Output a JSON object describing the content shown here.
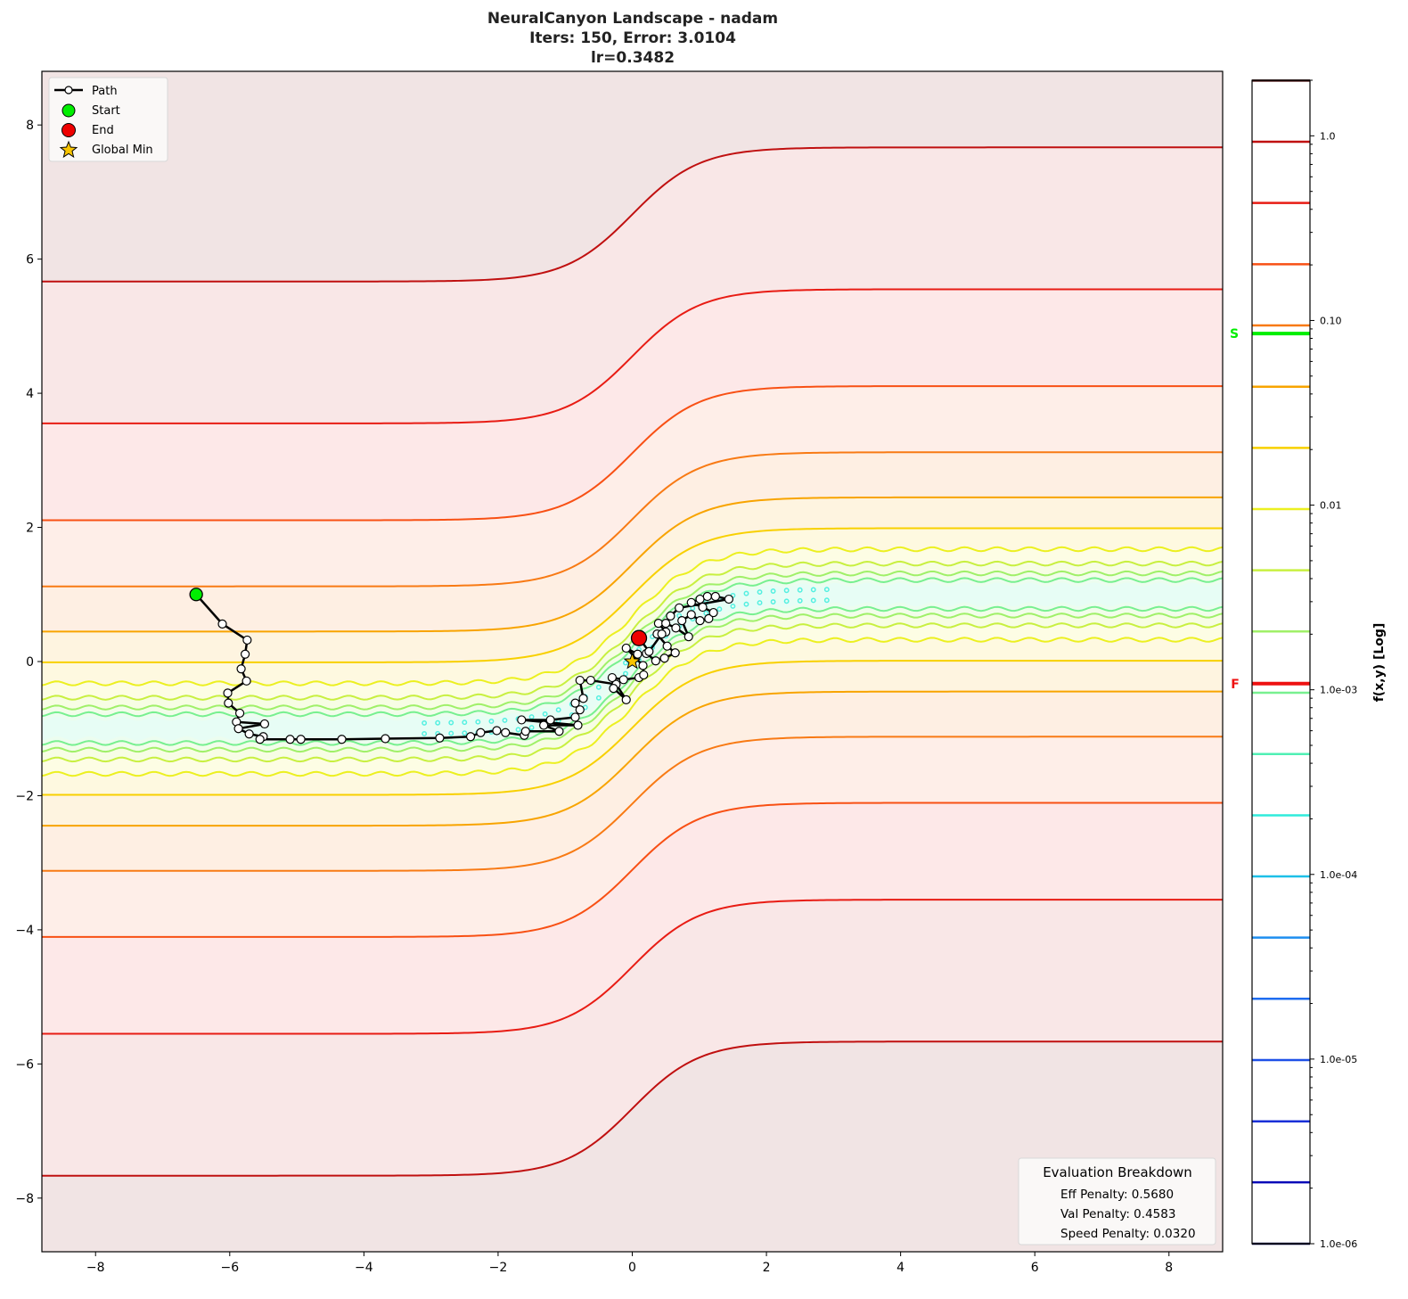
{
  "chart_data": {
    "type": "contour",
    "title": [
      "NeuralCanyon Landscape - nadam",
      "Iters: 150, Error: 3.0104",
      "lr=0.3482"
    ],
    "xlim": [
      -8.8,
      8.8
    ],
    "ylim": [
      -8.8,
      8.8
    ],
    "xticks": [
      -8,
      -6,
      -4,
      -2,
      0,
      2,
      4,
      6,
      8
    ],
    "yticks": [
      -8,
      -6,
      -4,
      -2,
      0,
      2,
      4,
      6,
      8
    ],
    "xtick_labels": [
      "−8",
      "−6",
      "−4",
      "−2",
      "0",
      "2",
      "4",
      "6",
      "8"
    ],
    "ytick_labels": [
      "−8",
      "−6",
      "−4",
      "−2",
      "0",
      "2",
      "4",
      "6",
      "8"
    ],
    "grid": false,
    "contour_levels": [
      1e-06,
      2.15e-06,
      4.6e-06,
      9.88e-06,
      2.12e-05,
      4.55e-05,
      9.76e-05,
      0.000209,
      0.000449,
      0.000964,
      0.00207,
      0.00444,
      0.00952,
      0.0204,
      0.0438,
      0.094,
      0.2017,
      0.4328,
      0.9287,
      1.993
    ],
    "level_colors": [
      "#10104a",
      "#0a0ab8",
      "#1a30d8",
      "#1e50e8",
      "#1e6cf0",
      "#1e8ef0",
      "#1ec0e8",
      "#30ecdc",
      "#50f0b4",
      "#78f090",
      "#a0f068",
      "#c8f040",
      "#ecf020",
      "#f8d000",
      "#f8a400",
      "#f87a14",
      "#f85014",
      "#e81c14",
      "#c01010",
      "#400808"
    ],
    "surface": "f(x,y) = k·(y − tanh(x))², canyon along y = tanh(x)",
    "path": [
      [
        -6.5,
        1.0
      ],
      [
        -6.11,
        0.56
      ],
      [
        -5.74,
        0.32
      ],
      [
        -5.77,
        0.11
      ],
      [
        -5.83,
        -0.11
      ],
      [
        -5.75,
        -0.29
      ],
      [
        -6.03,
        -0.47
      ],
      [
        -6.02,
        -0.62
      ],
      [
        -5.85,
        -0.77
      ],
      [
        -5.9,
        -0.9
      ],
      [
        -5.48,
        -0.93
      ],
      [
        -5.87,
        -1.0
      ],
      [
        -5.71,
        -1.08
      ],
      [
        -5.5,
        -1.12
      ],
      [
        -5.55,
        -1.16
      ],
      [
        -5.1,
        -1.16
      ],
      [
        -4.94,
        -1.16
      ],
      [
        -4.33,
        -1.16
      ],
      [
        -3.68,
        -1.15
      ],
      [
        -2.87,
        -1.14
      ],
      [
        -2.41,
        -1.12
      ],
      [
        -2.26,
        -1.06
      ],
      [
        -2.02,
        -1.03
      ],
      [
        -1.89,
        -1.06
      ],
      [
        -1.61,
        -1.1
      ],
      [
        -1.59,
        -1.04
      ],
      [
        -1.09,
        -1.04
      ],
      [
        -1.32,
        -0.95
      ],
      [
        -0.81,
        -0.95
      ],
      [
        -1.65,
        -0.87
      ],
      [
        -1.22,
        -0.87
      ],
      [
        -0.85,
        -0.83
      ],
      [
        -0.78,
        -0.72
      ],
      [
        -0.85,
        -0.62
      ],
      [
        -0.73,
        -0.55
      ],
      [
        -0.78,
        -0.28
      ],
      [
        -0.62,
        -0.28
      ],
      [
        -0.24,
        -0.34
      ],
      [
        -0.09,
        -0.57
      ],
      [
        -0.28,
        -0.4
      ],
      [
        -0.3,
        -0.24
      ],
      [
        -0.13,
        -0.27
      ],
      [
        0.1,
        -0.24
      ],
      [
        0.17,
        -0.2
      ],
      [
        0.16,
        -0.06
      ],
      [
        -0.09,
        0.2
      ],
      [
        0.08,
        0.11
      ],
      [
        0.21,
        0.12
      ],
      [
        0.35,
        0.01
      ],
      [
        0.48,
        0.05
      ],
      [
        0.64,
        0.13
      ],
      [
        0.52,
        0.23
      ],
      [
        0.37,
        0.41
      ],
      [
        0.5,
        0.44
      ],
      [
        0.39,
        0.57
      ],
      [
        0.5,
        0.57
      ],
      [
        0.65,
        0.5
      ],
      [
        0.84,
        0.37
      ],
      [
        0.74,
        0.61
      ],
      [
        0.88,
        0.7
      ],
      [
        1.01,
        0.61
      ],
      [
        1.14,
        0.64
      ],
      [
        1.21,
        0.73
      ],
      [
        1.05,
        0.81
      ],
      [
        0.88,
        0.88
      ],
      [
        1.01,
        0.93
      ],
      [
        1.12,
        0.97
      ],
      [
        1.24,
        0.97
      ],
      [
        1.44,
        0.93
      ],
      [
        0.7,
        0.8
      ],
      [
        0.57,
        0.68
      ],
      [
        0.44,
        0.41
      ],
      [
        0.25,
        0.15
      ],
      [
        0.1,
        0.35
      ]
    ],
    "start": [
      -6.5,
      1.0
    ],
    "end": [
      0.1,
      0.35
    ],
    "global_min": [
      0.0,
      0.0
    ],
    "legend": {
      "position": "upper-left",
      "entries": [
        "Path",
        "Start",
        "End",
        "Global Min"
      ]
    },
    "colorbar": {
      "label": "f(x,y) [Log]",
      "scale": "log",
      "range": [
        1e-06,
        2.0
      ],
      "tick_values": [
        1.0,
        0.1,
        0.01,
        0.001,
        0.0001,
        1e-05,
        1e-06
      ],
      "tick_labels": [
        "1.0",
        "0.10",
        "0.01",
        "1.0e-03",
        "1.0e-04",
        "1.0e-05",
        "1.0e-06"
      ],
      "start_marker": {
        "label": "S",
        "value": 0.085,
        "color": "#00ee00"
      },
      "final_marker": {
        "label": "F",
        "value": 0.00108,
        "color": "#ee1111"
      }
    },
    "evaluation": {
      "title": "Evaluation Breakdown",
      "lines": [
        "Eff Penalty: 0.5680",
        "Val Penalty: 0.4583",
        "Speed Penalty: 0.0320"
      ],
      "position": "lower-right"
    }
  }
}
